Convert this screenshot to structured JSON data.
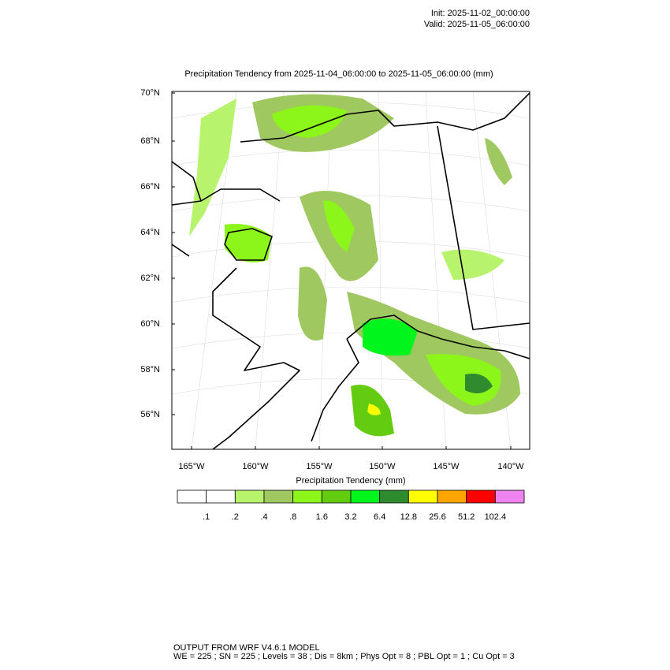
{
  "header": {
    "init": "Init: 2025-11-02_00:00:00",
    "valid": "Valid: 2025-11-05_06:00:00"
  },
  "title": "Precipitation Tendency from 2025-11-04_06:00:00 to 2025-11-05_06:00:00   (mm)",
  "map": {
    "lat_labels": [
      "70°N",
      "68°N",
      "66°N",
      "64°N",
      "62°N",
      "60°N",
      "58°N",
      "56°N"
    ],
    "lon_labels": [
      "165°W",
      "160°W",
      "155°W",
      "150°W",
      "145°W",
      "140°W"
    ]
  },
  "colorbar": {
    "title": "Precipitation Tendency  (mm)",
    "labels": [
      ".1",
      ".2",
      ".4",
      ".8",
      "1.6",
      "3.2",
      "6.4",
      "12.8",
      "25.6",
      "51.2",
      "102.4"
    ],
    "colors": [
      "#ffffff",
      "#ffffff",
      "#b8f36e",
      "#a0c860",
      "#8cf519",
      "#64cc10",
      "#00f51c",
      "#2e8b2e",
      "#ffff00",
      "#ffa500",
      "#ff0000",
      "#ee82ee"
    ]
  },
  "footer": {
    "line1": "OUTPUT FROM WRF V4.6.1 MODEL",
    "line2": "WE = 225 ; SN = 225 ; Levels = 38 ; Dis = 8km ; Phys Opt = 8 ; PBL Opt = 1 ; Cu Opt = 3"
  }
}
